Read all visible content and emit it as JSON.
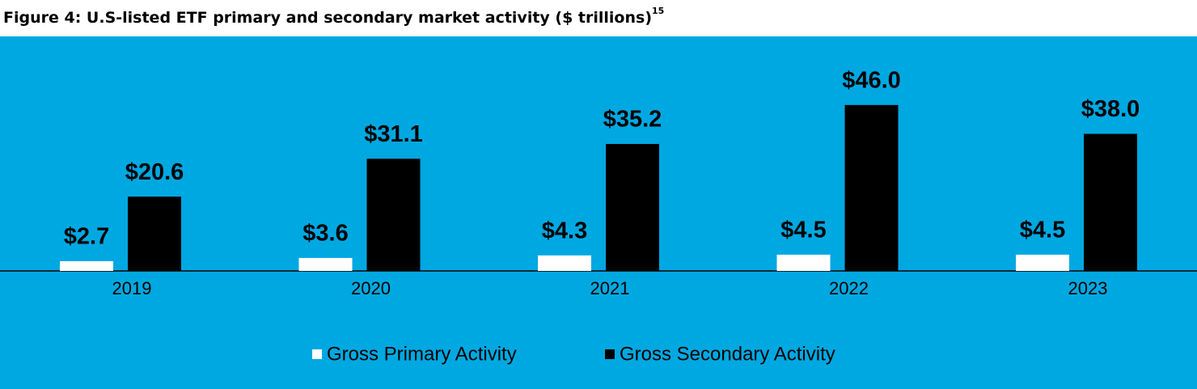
{
  "chart_data": {
    "type": "bar",
    "title": "Figure 4: U.S-listed ETF primary and secondary market activity ($ trillions)",
    "title_superscript": "15",
    "categories": [
      "2019",
      "2020",
      "2021",
      "2022",
      "2023"
    ],
    "series": [
      {
        "name": "Gross Primary Activity",
        "color": "#ffffff",
        "values": [
          2.7,
          3.6,
          4.3,
          4.5,
          4.5
        ],
        "value_labels": [
          "$2.7",
          "$3.6",
          "$4.3",
          "$4.5",
          "$4.5"
        ]
      },
      {
        "name": "Gross Secondary Activity",
        "color": "#000000",
        "values": [
          20.6,
          31.1,
          35.2,
          46.0,
          38.0
        ],
        "value_labels": [
          "$20.6",
          "$31.1",
          "$35.2",
          "$46.0",
          "$38.0"
        ]
      }
    ]
  }
}
